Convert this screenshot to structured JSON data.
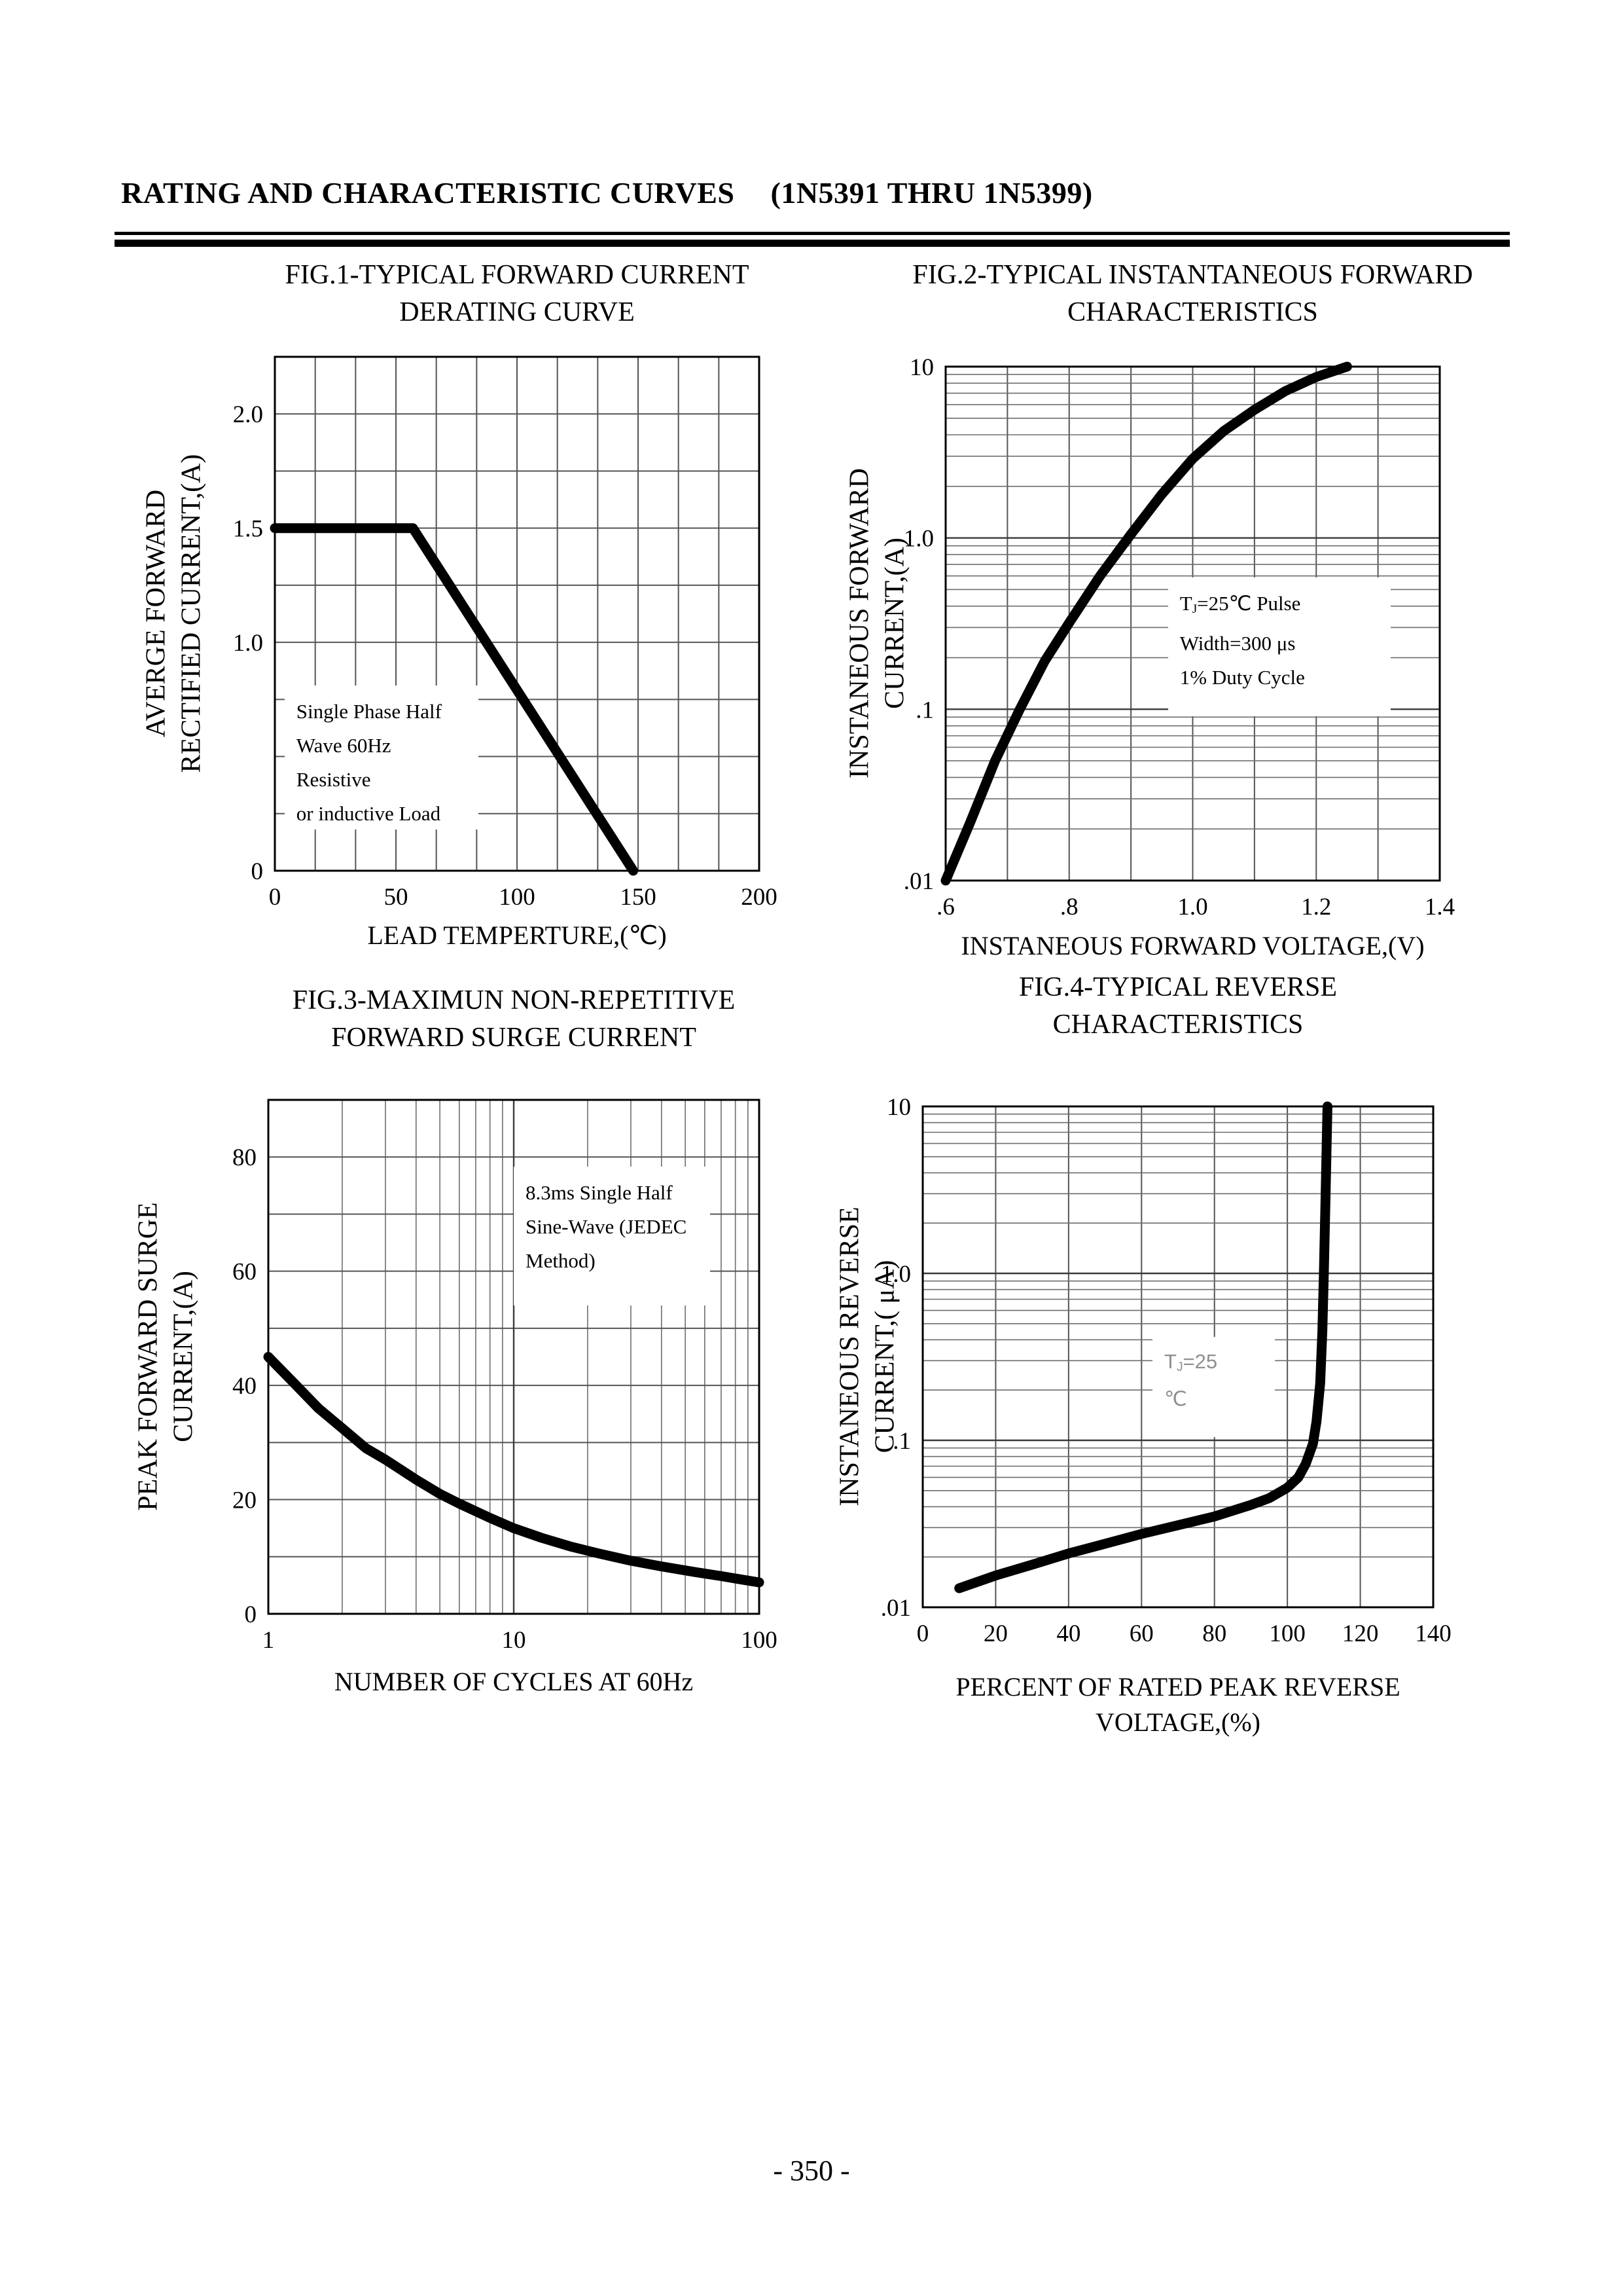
{
  "page": {
    "header_title": "RATING AND CHARACTERISTIC CURVES",
    "header_part_range": "(1N5391 THRU 1N5399)",
    "page_number": "- 350 -"
  },
  "colors": {
    "ink": "#000000",
    "grid_minor": "#6e6e6e",
    "grid_major": "#3a3a3a",
    "annotation_gray": "#8f8f8f"
  },
  "chart_data": [
    {
      "id": "fig1",
      "type": "line",
      "title_lines": [
        "FIG.1-TYPICAL FORWARD CURRENT",
        "DERATING CURVE"
      ],
      "xlabel_lines": [
        "LEAD TEMPERTURE,(℃)"
      ],
      "ylabel_lines": [
        "AVERGE FORWARD",
        "RECTIFIED CURRENT,(A)"
      ],
      "x_axis": {
        "scale": "linear",
        "min": 0,
        "max": 200,
        "divisions": 12,
        "ticks": [
          {
            "v": 0,
            "label": "0"
          },
          {
            "v": 50,
            "label": "50"
          },
          {
            "v": 100,
            "label": "100"
          },
          {
            "v": 150,
            "label": "150"
          },
          {
            "v": 200,
            "label": "200"
          }
        ]
      },
      "y_axis": {
        "scale": "linear",
        "min": 0,
        "max": 2.25,
        "divisions": 9,
        "ticks": [
          {
            "v": 2.0,
            "label": "2.0"
          },
          {
            "v": 1.5,
            "label": "1.5"
          },
          {
            "v": 1.0,
            "label": "1.0"
          },
          {
            "v": 0,
            "label": "0"
          }
        ]
      },
      "series": [
        {
          "name": "forward-current-derating",
          "points": [
            [
              0,
              1.5
            ],
            [
              57,
              1.5
            ],
            [
              148,
              0
            ]
          ]
        }
      ],
      "annotation": {
        "lines": [
          "Single Phase Half",
          "Wave 60Hz Resistive",
          "or inductive Load"
        ],
        "color": "#000000",
        "sans": false,
        "box": [
          0.02,
          0.64,
          0.4,
          0.28
        ]
      }
    },
    {
      "id": "fig2",
      "type": "line",
      "title_lines": [
        "FIG.2-TYPICAL INSTANTANEOUS FORWARD",
        "CHARACTERISTICS"
      ],
      "xlabel_lines": [
        "INSTANEOUS FORWARD VOLTAGE,(V)"
      ],
      "ylabel_lines": [
        "INSTANEOUS FORWARD",
        "CURRENT,(A)"
      ],
      "x_axis": {
        "scale": "linear",
        "min": 0.6,
        "max": 1.4,
        "divisions": 8,
        "ticks": [
          {
            "v": 0.6,
            "label": ".6"
          },
          {
            "v": 0.8,
            "label": ".8"
          },
          {
            "v": 1.0,
            "label": "1.0"
          },
          {
            "v": 1.2,
            "label": "1.2"
          },
          {
            "v": 1.4,
            "label": "1.4"
          }
        ]
      },
      "y_axis": {
        "scale": "log",
        "min": 0.01,
        "max": 10,
        "ticks": [
          {
            "v": 10,
            "label": "10"
          },
          {
            "v": 1,
            "label": "1.0"
          },
          {
            "v": 0.1,
            "label": ".1"
          },
          {
            "v": 0.01,
            "label": ".01"
          }
        ]
      },
      "series": [
        {
          "name": "instantaneous-forward",
          "points": [
            [
              0.6,
              0.01
            ],
            [
              0.64,
              0.022
            ],
            [
              0.68,
              0.05
            ],
            [
              0.72,
              0.1
            ],
            [
              0.76,
              0.19
            ],
            [
              0.8,
              0.32
            ],
            [
              0.85,
              0.6
            ],
            [
              0.9,
              1.05
            ],
            [
              0.95,
              1.8
            ],
            [
              1.0,
              2.9
            ],
            [
              1.05,
              4.2
            ],
            [
              1.1,
              5.6
            ],
            [
              1.15,
              7.2
            ],
            [
              1.2,
              8.7
            ],
            [
              1.25,
              10
            ]
          ]
        }
      ],
      "annotation": {
        "lines": [
          "T_{J}=25℃ Pulse",
          "Width=300 μs",
          "1% Duty Cycle"
        ],
        "color": "#000000",
        "sans": false,
        "box": [
          0.45,
          0.41,
          0.45,
          0.27
        ]
      }
    },
    {
      "id": "fig3",
      "type": "line",
      "title_lines": [
        "FIG.3-MAXIMUN NON-REPETITIVE",
        "FORWARD SURGE CURRENT"
      ],
      "xlabel_lines": [
        "NUMBER OF CYCLES AT 60Hz"
      ],
      "ylabel_lines": [
        "PEAK FORWARD SURGE",
        "CURRENT,(A)"
      ],
      "x_axis": {
        "scale": "log",
        "min": 1,
        "max": 100,
        "ticks": [
          {
            "v": 1,
            "label": "1"
          },
          {
            "v": 10,
            "label": "10"
          },
          {
            "v": 100,
            "label": "100"
          }
        ]
      },
      "y_axis": {
        "scale": "linear",
        "min": 0,
        "max": 90,
        "divisions": 9,
        "ticks": [
          {
            "v": 80,
            "label": "80"
          },
          {
            "v": 60,
            "label": "60"
          },
          {
            "v": 40,
            "label": "40"
          },
          {
            "v": 20,
            "label": "20"
          },
          {
            "v": 0,
            "label": "0"
          }
        ]
      },
      "series": [
        {
          "name": "peak-forward-surge",
          "points": [
            [
              1,
              45
            ],
            [
              1.3,
              40
            ],
            [
              1.6,
              36
            ],
            [
              2,
              32.5
            ],
            [
              2.5,
              29
            ],
            [
              3,
              27
            ],
            [
              4,
              23.5
            ],
            [
              5,
              21
            ],
            [
              6,
              19.3
            ],
            [
              8,
              16.8
            ],
            [
              10,
              15
            ],
            [
              13,
              13.3
            ],
            [
              17,
              11.8
            ],
            [
              22,
              10.6
            ],
            [
              30,
              9.3
            ],
            [
              40,
              8.3
            ],
            [
              55,
              7.3
            ],
            [
              70,
              6.6
            ],
            [
              85,
              6
            ],
            [
              100,
              5.5
            ]
          ]
        }
      ],
      "annotation": {
        "lines": [
          "8.3ms Single Half",
          "Sine-Wave (JEDEC",
          "Method)"
        ],
        "color": "#000000",
        "sans": false,
        "box": [
          0.5,
          0.13,
          0.4,
          0.27
        ]
      }
    },
    {
      "id": "fig4",
      "type": "line",
      "title_lines": [
        "FIG.4-TYPICAL REVERSE",
        "CHARACTERISTICS"
      ],
      "xlabel_lines": [
        "PERCENT OF RATED PEAK REVERSE",
        "VOLTAGE,(%)"
      ],
      "ylabel_lines": [
        "INSTANEOUS REVERSE",
        "CURRENT,( μA)"
      ],
      "x_axis": {
        "scale": "linear",
        "min": 0,
        "max": 140,
        "divisions": 7,
        "ticks": [
          {
            "v": 0,
            "label": "0"
          },
          {
            "v": 20,
            "label": "20"
          },
          {
            "v": 40,
            "label": "40"
          },
          {
            "v": 60,
            "label": "60"
          },
          {
            "v": 80,
            "label": "80"
          },
          {
            "v": 100,
            "label": "100"
          },
          {
            "v": 120,
            "label": "120"
          },
          {
            "v": 140,
            "label": "140"
          }
        ]
      },
      "y_axis": {
        "scale": "log",
        "min": 0.01,
        "max": 10,
        "ticks": [
          {
            "v": 10,
            "label": "10"
          },
          {
            "v": 1,
            "label": "1.0"
          },
          {
            "v": 0.1,
            "label": ".1"
          },
          {
            "v": 0.01,
            "label": ".01"
          }
        ]
      },
      "series": [
        {
          "name": "instantaneous-reverse",
          "points": [
            [
              10,
              0.013
            ],
            [
              20,
              0.0155
            ],
            [
              30,
              0.018
            ],
            [
              40,
              0.021
            ],
            [
              50,
              0.024
            ],
            [
              60,
              0.0275
            ],
            [
              70,
              0.031
            ],
            [
              80,
              0.035
            ],
            [
              90,
              0.041
            ],
            [
              95,
              0.045
            ],
            [
              100,
              0.052
            ],
            [
              103,
              0.06
            ],
            [
              105,
              0.072
            ],
            [
              107,
              0.095
            ],
            [
              108,
              0.13
            ],
            [
              109,
              0.22
            ],
            [
              109.6,
              0.45
            ],
            [
              110,
              1.0
            ],
            [
              110.5,
              3.0
            ],
            [
              111,
              10
            ]
          ]
        }
      ],
      "annotation": {
        "lines": [
          "T_{J}=25",
          "℃"
        ],
        "color": "#8f8f8f",
        "sans": true,
        "box": [
          0.45,
          0.46,
          0.24,
          0.2
        ]
      }
    }
  ]
}
